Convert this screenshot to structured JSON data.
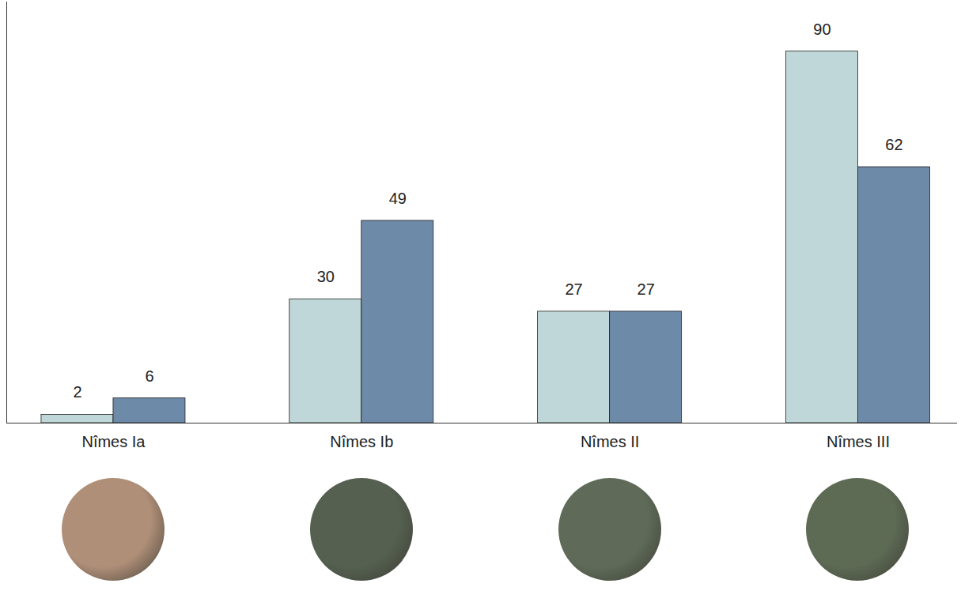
{
  "chart_data": {
    "type": "bar",
    "categories": [
      "Nîmes Ia",
      "Nîmes Ib",
      "Nîmes II",
      "Nîmes III"
    ],
    "series": [
      {
        "color": "#bfd7d8",
        "values": [
          2,
          30,
          27,
          90
        ]
      },
      {
        "color": "#6d8aa8",
        "values": [
          6,
          49,
          27,
          62
        ]
      }
    ],
    "ylim": [
      0,
      102
    ],
    "yticks": [],
    "grid": false,
    "data_labels": true,
    "tick_labels": "x"
  }
}
